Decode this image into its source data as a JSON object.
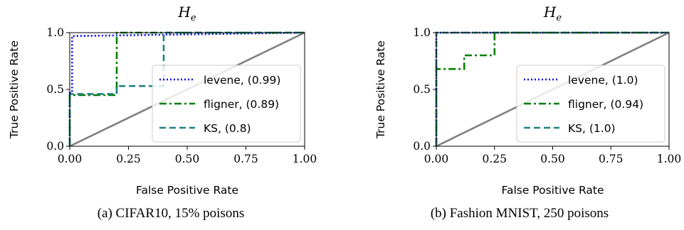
{
  "chart_data": [
    {
      "type": "line",
      "title": "H",
      "title_subscript": "e",
      "xlabel": "False Positive Rate",
      "ylabel": "True Positive Rate",
      "xlim": [
        0,
        1
      ],
      "ylim": [
        0,
        1
      ],
      "xticks": [
        "0.00",
        "0.25",
        "0.50",
        "0.75",
        "1.00"
      ],
      "yticks": [
        "0.0",
        "0.5",
        "1.0"
      ],
      "legend_position": "center-right",
      "caption": "(a) CIFAR10, 15% poisons",
      "series": [
        {
          "name": "levene, (0.99)",
          "color": "#0000ee",
          "dash": "dotted",
          "x": [
            0,
            0,
            0.01,
            0.01,
            1
          ],
          "y": [
            0,
            0.47,
            0.47,
            0.97,
            1
          ]
        },
        {
          "name": "fligner, (0.89)",
          "color": "#007f00",
          "dash": "dashdot",
          "x": [
            0,
            0,
            0.2,
            0.2,
            0.2,
            1
          ],
          "y": [
            0,
            0.45,
            0.45,
            0.6,
            1,
            1
          ]
        },
        {
          "name": "KS, (0.8)",
          "color": "#1f8080",
          "dash": "dashed",
          "x": [
            0,
            0,
            0.2,
            0.2,
            0.4,
            0.4,
            1
          ],
          "y": [
            0,
            0.46,
            0.46,
            0.53,
            0.53,
            1,
            1
          ]
        },
        {
          "name": "",
          "color": "#808080",
          "dash": "solid",
          "x": [
            0,
            1
          ],
          "y": [
            0,
            1
          ]
        }
      ]
    },
    {
      "type": "line",
      "title": "H",
      "title_subscript": "e",
      "xlabel": "False Positive Rate",
      "ylabel": "True Positive Rate",
      "xlim": [
        0,
        1
      ],
      "ylim": [
        0,
        1
      ],
      "xticks": [
        "0.00",
        "0.25",
        "0.50",
        "0.75",
        "1.00"
      ],
      "yticks": [
        "0.0",
        "0.5",
        "1.0"
      ],
      "legend_position": "center-right",
      "caption": "(b) Fashion MNIST, 250 poisons",
      "series": [
        {
          "name": "levene, (1.0)",
          "color": "#0000ee",
          "dash": "dotted",
          "x": [
            0,
            0,
            1
          ],
          "y": [
            0,
            1,
            1
          ]
        },
        {
          "name": "fligner, (0.94)",
          "color": "#007f00",
          "dash": "dashdot",
          "x": [
            0,
            0,
            0.12,
            0.12,
            0.25,
            0.25,
            1
          ],
          "y": [
            0,
            0.68,
            0.68,
            0.8,
            0.8,
            1,
            1
          ]
        },
        {
          "name": "KS, (1.0)",
          "color": "#1f8080",
          "dash": "dashed",
          "x": [
            0,
            0,
            1
          ],
          "y": [
            0,
            1,
            1
          ]
        },
        {
          "name": "",
          "color": "#808080",
          "dash": "solid",
          "x": [
            0,
            1
          ],
          "y": [
            0,
            1
          ]
        }
      ]
    }
  ]
}
